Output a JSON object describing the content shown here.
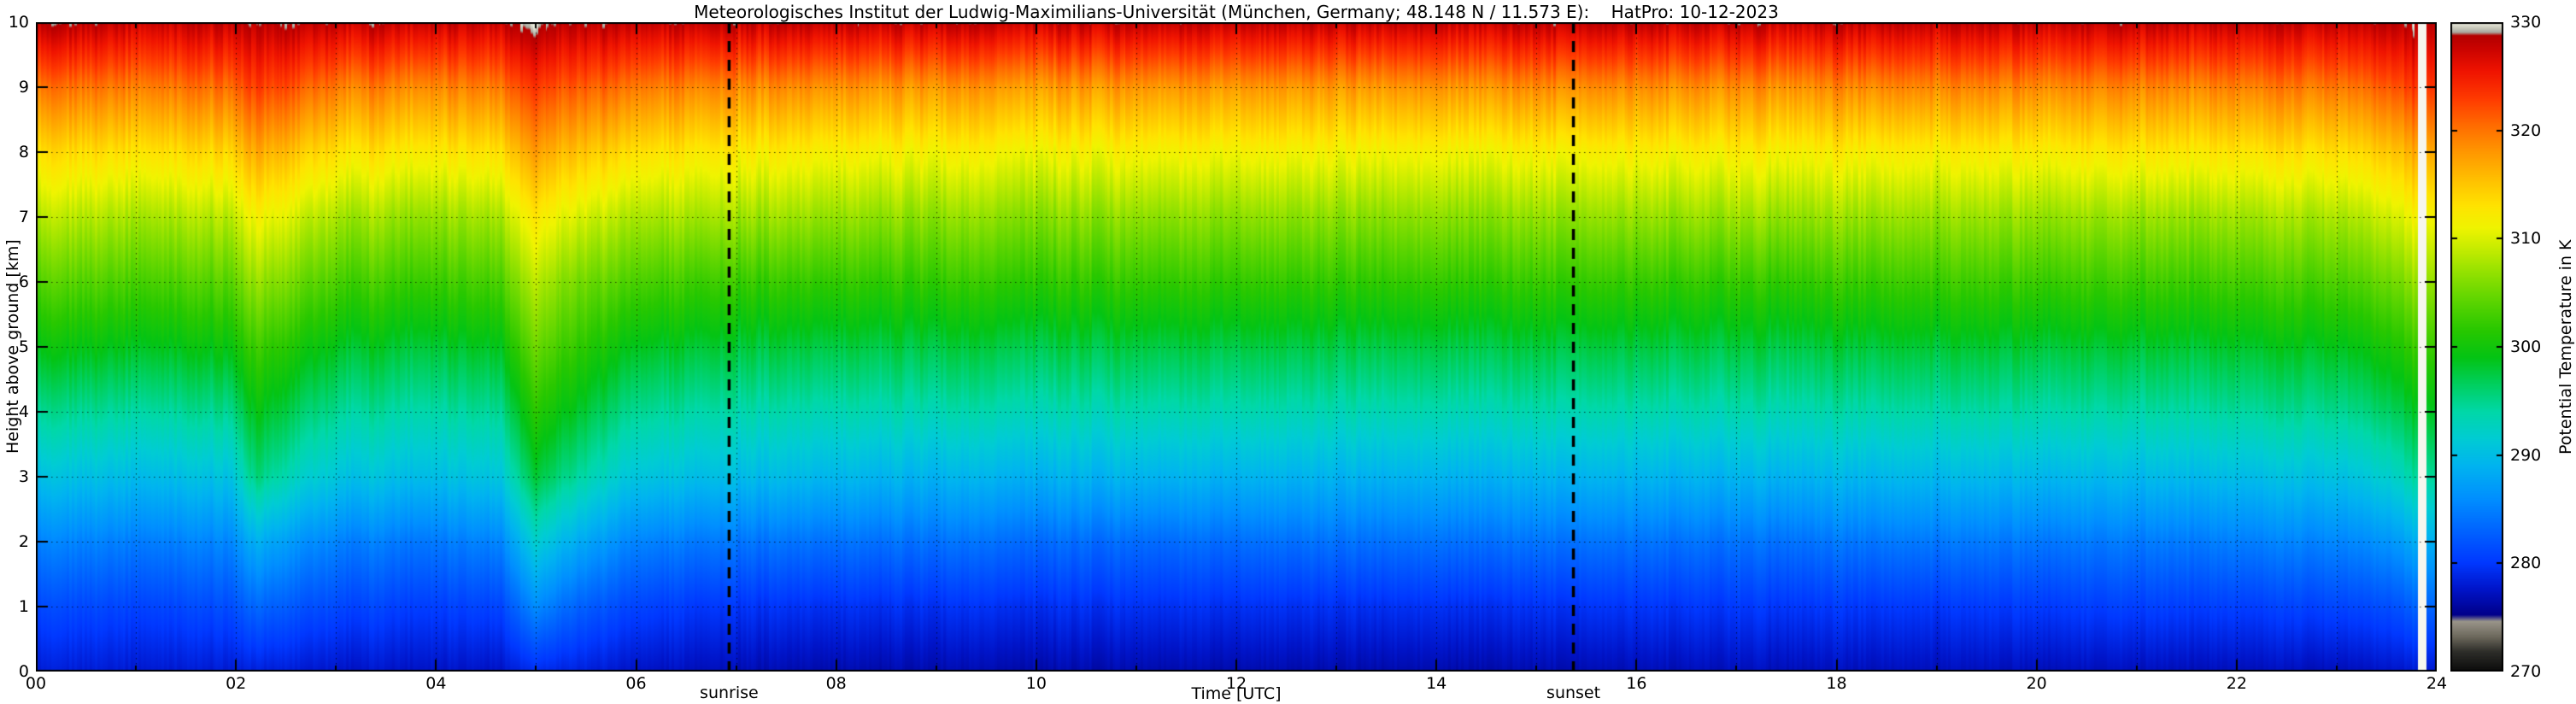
{
  "chart_data": {
    "type": "heatmap",
    "title": "Meteorologisches Institut der Ludwig-Maximilians-Universität (München, Germany; 48.148 N / 11.573 E):    HatPro: 10-12-2023",
    "xlabel": "Time [UTC]",
    "ylabel": "Height above ground [km]",
    "colorbar_label": "Potential Temperature in K",
    "x_range_hours": [
      0,
      24
    ],
    "y_range_km": [
      0,
      10
    ],
    "colorbar_range": [
      270,
      330
    ],
    "grid": {
      "x_step_hours": 1,
      "y_step_km": 1,
      "style": "dotted"
    },
    "x_ticks": [
      {
        "value": 0,
        "label": "00"
      },
      {
        "value": 2,
        "label": "02"
      },
      {
        "value": 4,
        "label": "04"
      },
      {
        "value": 6,
        "label": "06"
      },
      {
        "value": 8,
        "label": "08"
      },
      {
        "value": 10,
        "label": "10"
      },
      {
        "value": 12,
        "label": "12"
      },
      {
        "value": 14,
        "label": "14"
      },
      {
        "value": 16,
        "label": "16"
      },
      {
        "value": 18,
        "label": "18"
      },
      {
        "value": 20,
        "label": "20"
      },
      {
        "value": 22,
        "label": "22"
      },
      {
        "value": 24,
        "label": "24"
      }
    ],
    "y_ticks": [
      {
        "value": 0,
        "label": "0"
      },
      {
        "value": 1,
        "label": "1"
      },
      {
        "value": 2,
        "label": "2"
      },
      {
        "value": 3,
        "label": "3"
      },
      {
        "value": 4,
        "label": "4"
      },
      {
        "value": 5,
        "label": "5"
      },
      {
        "value": 6,
        "label": "6"
      },
      {
        "value": 7,
        "label": "7"
      },
      {
        "value": 8,
        "label": "8"
      },
      {
        "value": 9,
        "label": "9"
      },
      {
        "value": 10,
        "label": "10"
      }
    ],
    "colorbar_ticks": [
      {
        "value": 270,
        "label": "270"
      },
      {
        "value": 280,
        "label": "280"
      },
      {
        "value": 290,
        "label": "290"
      },
      {
        "value": 300,
        "label": "300"
      },
      {
        "value": 310,
        "label": "310"
      },
      {
        "value": 320,
        "label": "320"
      },
      {
        "value": 330,
        "label": "330"
      }
    ],
    "annotations": [
      {
        "label": "sunrise",
        "x": 6.93
      },
      {
        "label": "sunset",
        "x": 15.37
      }
    ],
    "data_gaps": [
      {
        "x_start": 23.82,
        "x_end": 23.9
      }
    ],
    "colormap": [
      [
        270.0,
        "#0c0c0c"
      ],
      [
        271.8,
        "#2e2e2a"
      ],
      [
        273.2,
        "#6e6a5e"
      ],
      [
        274.6,
        "#9a958a"
      ],
      [
        275.2,
        "#00008a"
      ],
      [
        277.5,
        "#0014c8"
      ],
      [
        280,
        "#0038ff"
      ],
      [
        283,
        "#0064ff"
      ],
      [
        286,
        "#0090ff"
      ],
      [
        289,
        "#00b4f0"
      ],
      [
        291.5,
        "#00ccd4"
      ],
      [
        294,
        "#00d8a8"
      ],
      [
        296.5,
        "#00d060"
      ],
      [
        299,
        "#04c414"
      ],
      [
        301.5,
        "#28c800"
      ],
      [
        304,
        "#58d400"
      ],
      [
        306.5,
        "#8ce000"
      ],
      [
        309,
        "#c4ec00"
      ],
      [
        311,
        "#f0f400"
      ],
      [
        313,
        "#ffe400"
      ],
      [
        315.5,
        "#ffc000"
      ],
      [
        318,
        "#ff9800"
      ],
      [
        320.5,
        "#ff6c00"
      ],
      [
        323,
        "#ff3a00"
      ],
      [
        325.5,
        "#f01400"
      ],
      [
        327.5,
        "#cc0400"
      ],
      [
        328.8,
        "#b40000"
      ],
      [
        329.1,
        "#a8a89e"
      ],
      [
        329.5,
        "#c9c9bc"
      ],
      [
        330,
        "#eeeede"
      ]
    ],
    "profile_heights_km": [
      0,
      1,
      2,
      3,
      4,
      5,
      6,
      7,
      8,
      9,
      10
    ],
    "profiles": [
      {
        "t": 0.0,
        "theta": [
          278,
          281,
          285,
          290,
          294.5,
          299,
          303.5,
          308,
          313,
          319.5,
          328
        ]
      },
      {
        "t": 1.2,
        "theta": [
          278,
          281,
          285,
          290,
          294.5,
          299,
          303.5,
          308,
          313.5,
          320,
          328
        ]
      },
      {
        "t": 1.95,
        "theta": [
          278,
          281.5,
          285.5,
          290.5,
          295,
          299.5,
          304,
          308.5,
          314,
          320.5,
          328
        ]
      },
      {
        "t": 2.2,
        "theta": [
          278.5,
          283.5,
          289,
          296,
          299.5,
          303,
          307.5,
          312,
          317.5,
          323.5,
          329
        ]
      },
      {
        "t": 2.6,
        "theta": [
          278,
          282,
          286.5,
          292.5,
          296.5,
          300.5,
          305,
          309.5,
          315,
          321.5,
          328.5
        ]
      },
      {
        "t": 3.1,
        "theta": [
          277.5,
          281,
          285,
          290.5,
          294.5,
          298.5,
          303,
          307.5,
          313,
          319.5,
          328
        ]
      },
      {
        "t": 3.9,
        "theta": [
          277.5,
          280.5,
          284.5,
          290,
          294,
          298,
          302.5,
          307,
          312.5,
          319,
          328
        ]
      },
      {
        "t": 4.65,
        "theta": [
          277.5,
          281,
          285.5,
          291,
          295,
          299,
          303.5,
          308,
          313.5,
          320,
          328
        ]
      },
      {
        "t": 5.0,
        "theta": [
          279,
          285.5,
          291.5,
          297.5,
          301,
          304.5,
          308,
          312,
          317,
          322.5,
          329
        ]
      },
      {
        "t": 5.4,
        "theta": [
          278.5,
          283,
          288.5,
          294.5,
          298.5,
          302,
          305.5,
          310,
          315.5,
          321.5,
          328.5
        ]
      },
      {
        "t": 5.9,
        "theta": [
          277.5,
          281,
          285.5,
          291,
          295,
          299,
          303.5,
          308,
          313.5,
          320,
          328
        ]
      },
      {
        "t": 6.6,
        "theta": [
          277,
          280,
          284.5,
          290,
          294,
          298,
          302.5,
          307.5,
          312.5,
          319,
          328
        ]
      },
      {
        "t": 7.6,
        "theta": [
          276.5,
          279.5,
          284,
          289.5,
          293.5,
          297.5,
          302,
          307,
          312,
          318.5,
          328
        ]
      },
      {
        "t": 9.0,
        "theta": [
          276.5,
          279.5,
          284,
          289,
          293.5,
          297.5,
          302,
          306.5,
          311.5,
          318,
          328
        ]
      },
      {
        "t": 11.0,
        "theta": [
          276.5,
          279.5,
          283.5,
          289,
          293.5,
          297.5,
          302,
          306.5,
          311.5,
          318,
          328
        ]
      },
      {
        "t": 13.0,
        "theta": [
          276.5,
          279.5,
          284,
          289,
          293.5,
          297.5,
          302,
          306.5,
          311.5,
          318,
          328
        ]
      },
      {
        "t": 15.0,
        "theta": [
          276.5,
          279.5,
          284,
          289,
          293.5,
          297.5,
          302,
          306.5,
          311.5,
          318.5,
          328
        ]
      },
      {
        "t": 17.0,
        "theta": [
          277,
          280,
          284,
          289,
          293.5,
          297.5,
          302,
          307,
          312,
          318.5,
          328
        ]
      },
      {
        "t": 19.0,
        "theta": [
          277,
          280,
          284.5,
          289.5,
          294,
          298,
          302.5,
          307,
          312,
          319,
          328
        ]
      },
      {
        "t": 21.0,
        "theta": [
          277,
          280.5,
          284.5,
          289.5,
          294,
          298,
          302.5,
          307,
          312.5,
          319,
          328
        ]
      },
      {
        "t": 22.2,
        "theta": [
          277,
          280.5,
          285,
          290,
          294.5,
          298.5,
          303,
          307.5,
          313,
          319.5,
          328
        ]
      },
      {
        "t": 23.1,
        "theta": [
          277,
          281,
          285.5,
          290.5,
          295,
          299,
          303.5,
          308,
          313.5,
          320,
          328
        ]
      },
      {
        "t": 23.55,
        "theta": [
          277.5,
          281.5,
          286.5,
          292,
          296.5,
          300.5,
          305,
          309.5,
          315,
          321.5,
          328.5
        ]
      },
      {
        "t": 23.8,
        "theta": [
          278,
          283,
          288.5,
          294.5,
          298.5,
          302.5,
          307,
          311.5,
          317,
          323.5,
          329
        ]
      },
      {
        "t": 24.0,
        "theta": [
          278,
          283.5,
          289,
          295,
          299,
          303,
          307.5,
          312,
          317.5,
          324,
          329
        ]
      }
    ]
  }
}
